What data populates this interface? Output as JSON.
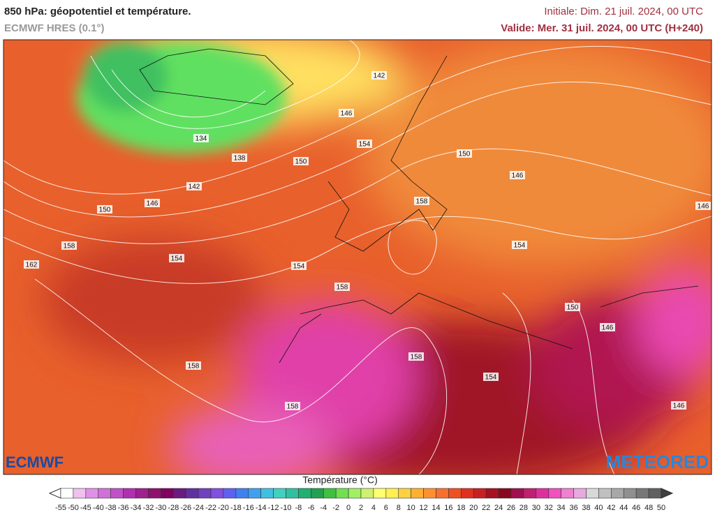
{
  "header": {
    "title": "850 hPa: géopotentiel et température.",
    "subtitle": "ECMWF HRES (0.1°)",
    "initial": "Initiale: Dim. 21 juil. 2024, 00 UTC",
    "valid": "Valide: Mer. 31 juil. 2024, 00 UTC (H+240)"
  },
  "map": {
    "contour_labels": [
      "142",
      "146",
      "154",
      "150",
      "146",
      "158",
      "146",
      "154",
      "134",
      "138",
      "150",
      "142",
      "146",
      "150",
      "158",
      "162",
      "154",
      "154",
      "158",
      "150",
      "146",
      "158",
      "154",
      "158",
      "158",
      "146"
    ],
    "logos": {
      "left": "ECMWF",
      "right": "METEORED"
    }
  },
  "colorbar": {
    "title": "Température (°C)",
    "ticks": [
      -55,
      -50,
      -45,
      -40,
      -38,
      -36,
      -34,
      -32,
      -30,
      -28,
      -26,
      -24,
      -22,
      -20,
      -18,
      -16,
      -14,
      -12,
      -10,
      -8,
      -6,
      -4,
      -2,
      0,
      2,
      4,
      6,
      8,
      10,
      12,
      14,
      16,
      18,
      20,
      22,
      24,
      26,
      28,
      30,
      32,
      34,
      36,
      38,
      40,
      42,
      44,
      46,
      48,
      50
    ],
    "colors": [
      "#ffffff",
      "#f0c0f0",
      "#e090e8",
      "#d070d8",
      "#c050c8",
      "#b030b0",
      "#a02090",
      "#901070",
      "#800060",
      "#6a1a80",
      "#6030a0",
      "#7040c0",
      "#8050e0",
      "#6060f0",
      "#4080f0",
      "#40a0f0",
      "#40c0e0",
      "#40d0c0",
      "#30c0a0",
      "#20b070",
      "#20a050",
      "#40c040",
      "#70e050",
      "#a0f060",
      "#d0f070",
      "#ffff70",
      "#fff050",
      "#ffd040",
      "#ffb030",
      "#ff9030",
      "#f87030",
      "#f05020",
      "#e03020",
      "#c82020",
      "#a81020",
      "#880820",
      "#a01050",
      "#c02070",
      "#e030a0",
      "#f050c0",
      "#f080d0",
      "#e8a8e0",
      "#d8d8d8",
      "#c0c0c0",
      "#a8a8a8",
      "#909090",
      "#787878",
      "#606060",
      "#404040"
    ]
  }
}
